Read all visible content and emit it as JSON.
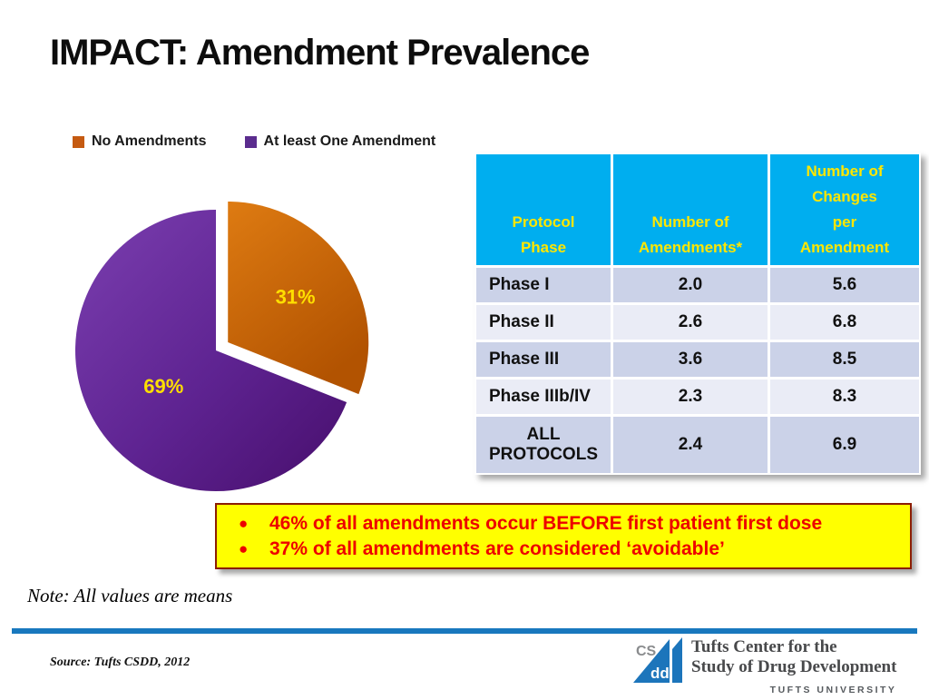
{
  "slide": {
    "title": "IMPACT: Amendment Prevalence",
    "note": "Note: All values are means",
    "source": "Source: Tufts CSDD, 2012"
  },
  "legend": {
    "position": "top-left",
    "items": [
      {
        "label": "No Amendments",
        "color": "#C55A11"
      },
      {
        "label": "At least One Amendment",
        "color": "#5B2C8E"
      }
    ]
  },
  "chart_data": [
    {
      "type": "pie",
      "title": "",
      "slices": [
        {
          "label": "No Amendments",
          "value": 31,
          "display": "31%",
          "color": "#CE6A0E"
        },
        {
          "label": "At least One Amendment",
          "value": 69,
          "display": "69%",
          "color": "#5E2391"
        }
      ],
      "exploded_slice": "No Amendments",
      "start_angle_deg": -90,
      "direction": "clockwise",
      "label_color": "#FFDF00",
      "legend_position": "top"
    },
    {
      "type": "table",
      "headers": [
        "Protocol\nPhase",
        "Number of\nAmendments*",
        "Number of\nChanges\nper\nAmendment"
      ],
      "rows": [
        {
          "phase": "Phase I",
          "amendments": "2.0",
          "changes": "5.6"
        },
        {
          "phase": "Phase II",
          "amendments": "2.6",
          "changes": "6.8"
        },
        {
          "phase": "Phase III",
          "amendments": "3.6",
          "changes": "8.5"
        },
        {
          "phase": "Phase IIIb/IV",
          "amendments": "2.3",
          "changes": "8.3"
        },
        {
          "phase": "ALL\nPROTOCOLS",
          "amendments": "2.4",
          "changes": "6.9"
        }
      ],
      "header_bg": "#00AEEF",
      "header_text_color": "#FFE600",
      "row_colors": [
        "#CBD2E8",
        "#EAECF6"
      ]
    }
  ],
  "callout": {
    "bg": "#FFFF00",
    "border_color": "#8B1D04",
    "text_color": "#ED0000",
    "bullets": [
      "46% of all amendments occur BEFORE first patient first dose",
      "37% of all amendments are considered ‘avoidable’"
    ]
  },
  "footer": {
    "divider_color": "#1878BE",
    "logo": {
      "cs": "CS",
      "dd": "dd",
      "blue": "#1C75BB"
    },
    "org_line1": "Tufts Center for the",
    "org_line2": "Study of Drug Development",
    "org_line3": "TUFTS UNIVERSITY"
  }
}
